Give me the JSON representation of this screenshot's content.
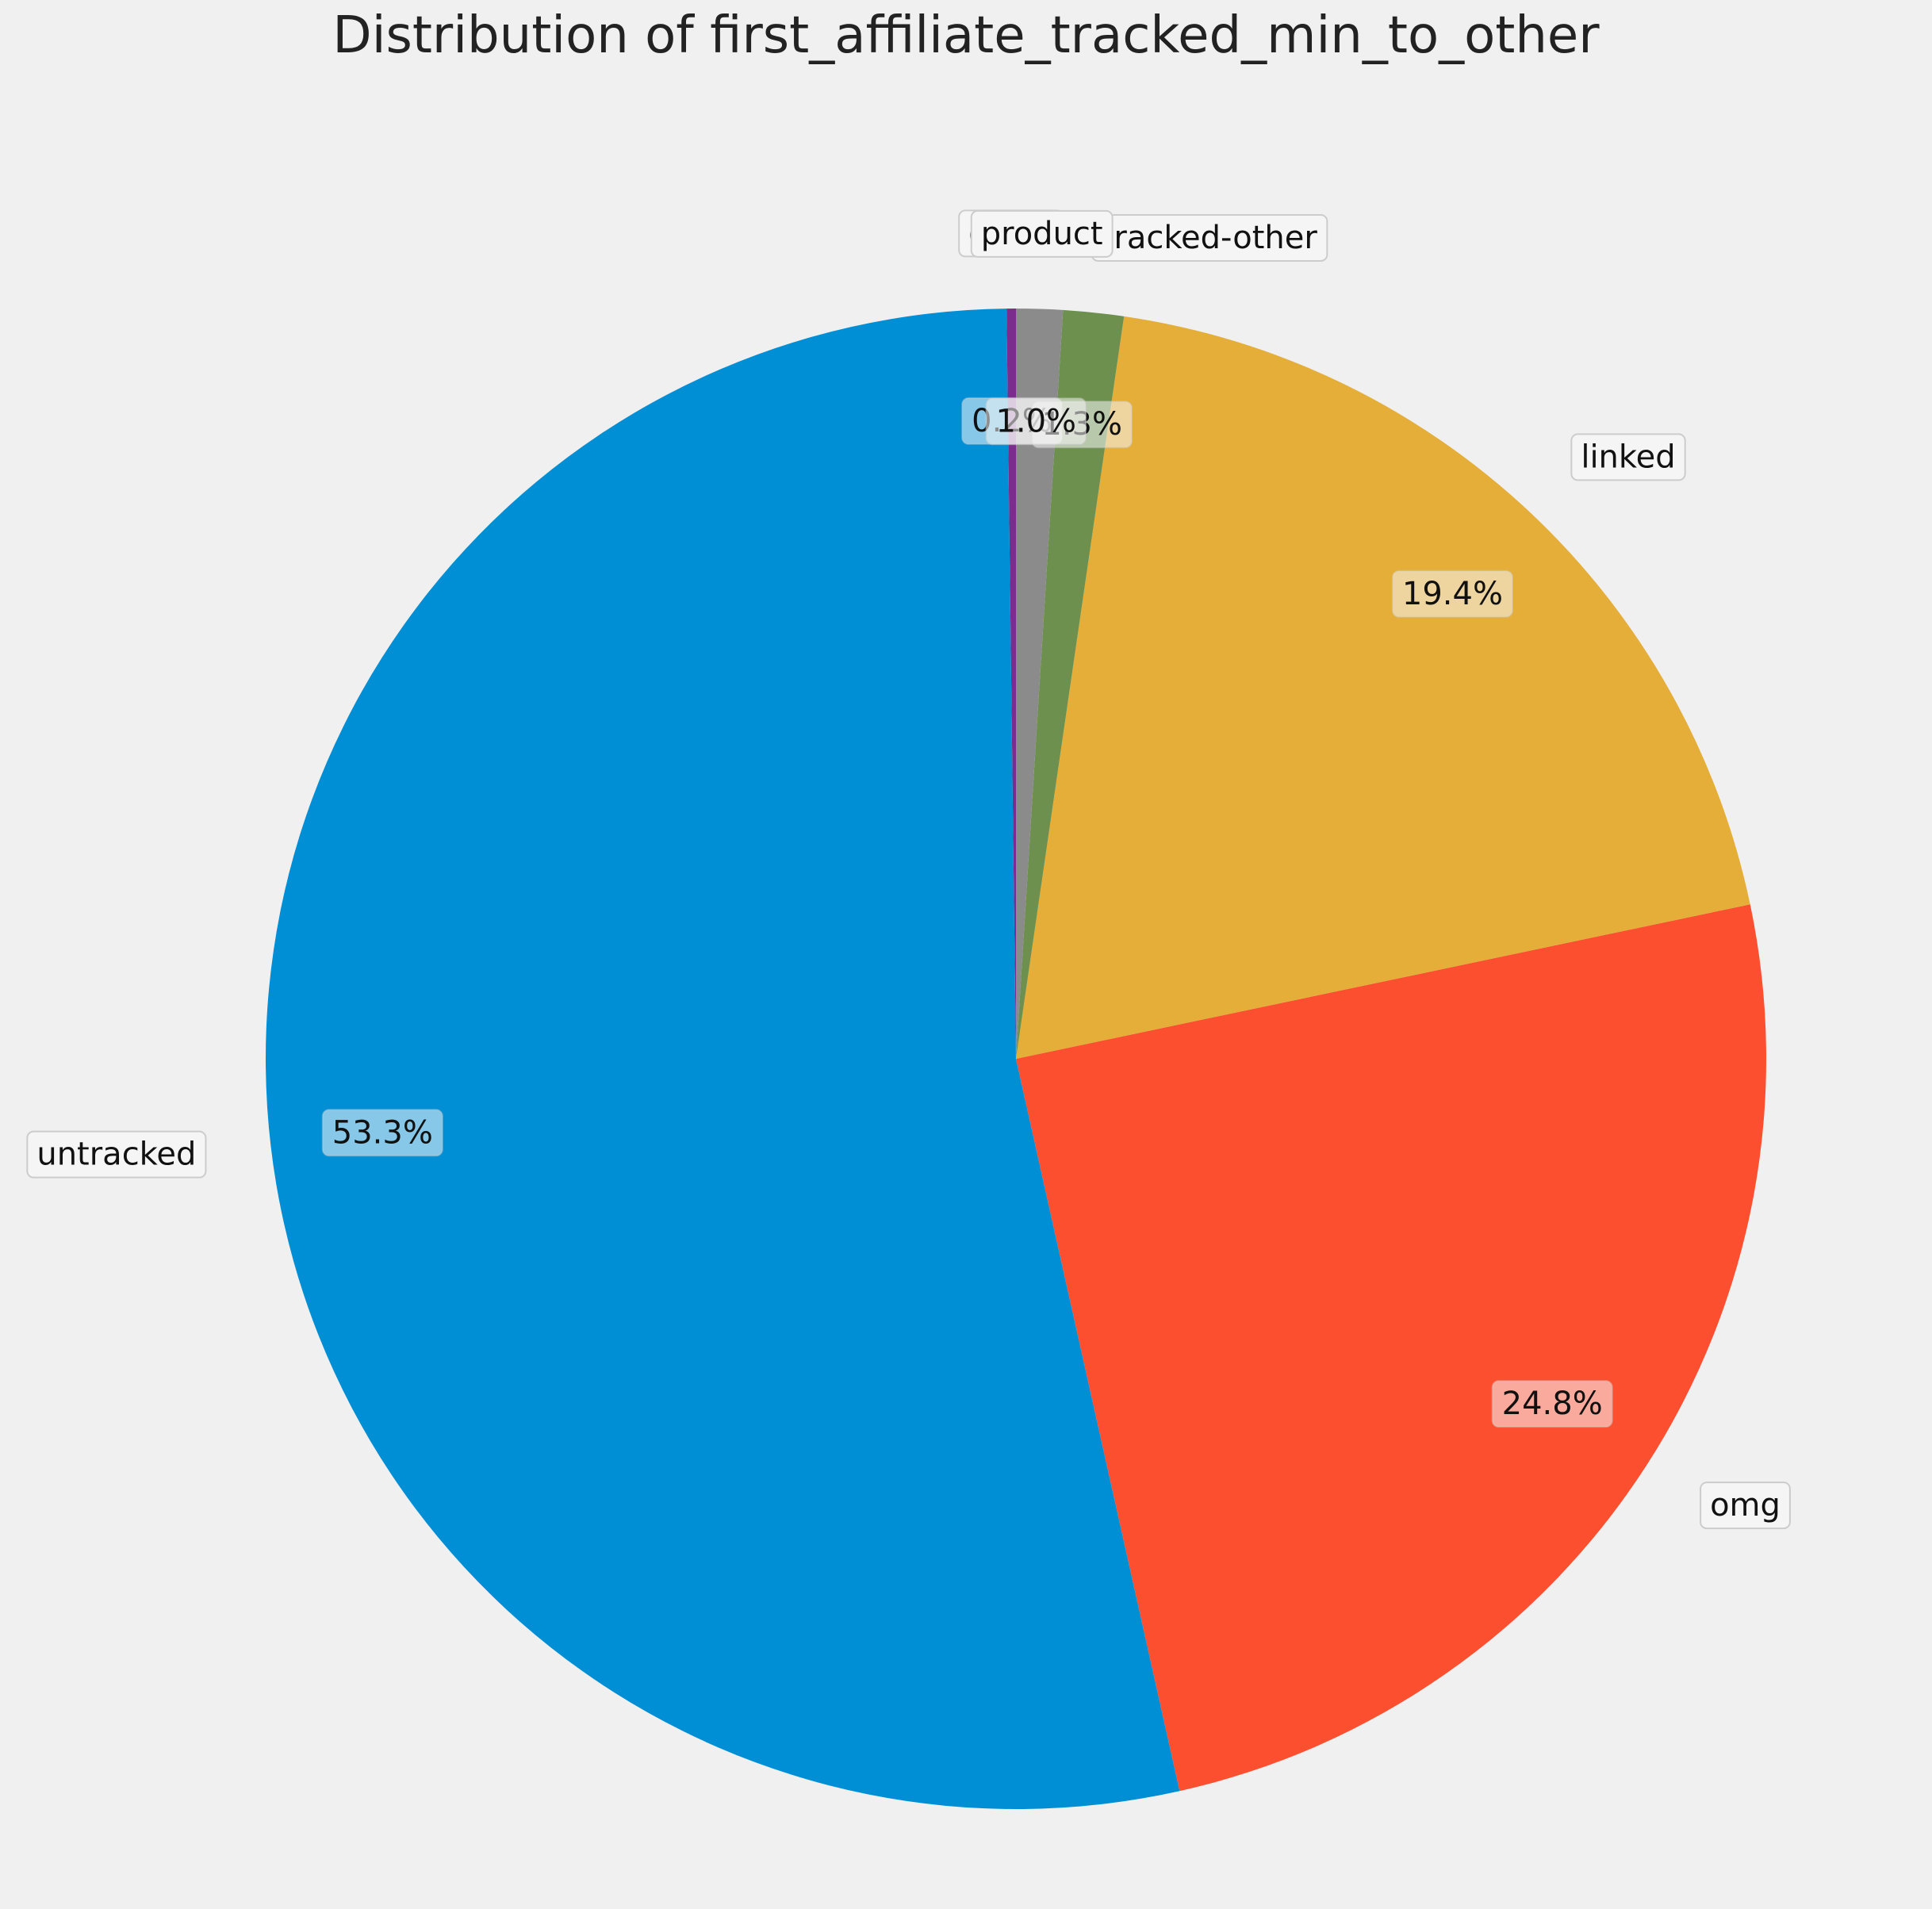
{
  "chart_data": {
    "type": "pie",
    "title": "Distribution of first_affiliate_tracked_min_to_other",
    "start_angle_deg": 90,
    "direction": "counterclockwise",
    "slices": [
      {
        "label": "other",
        "value": 0.2,
        "pct_label": "0.2%",
        "color": "#7b2d8e"
      },
      {
        "label": "untracked",
        "value": 53.3,
        "pct_label": "53.3%",
        "color": "#008fd5"
      },
      {
        "label": "omg",
        "value": 24.8,
        "pct_label": "24.8%",
        "color": "#fc4f30"
      },
      {
        "label": "linked",
        "value": 19.4,
        "pct_label": "19.4%",
        "color": "#e5ae38"
      },
      {
        "label": "tracked-other",
        "value": 1.3,
        "pct_label": "1.3%",
        "color": "#6d904f"
      },
      {
        "label": "product",
        "value": 1.0,
        "pct_label": "1.0%",
        "color": "#8b8b8b"
      }
    ]
  }
}
